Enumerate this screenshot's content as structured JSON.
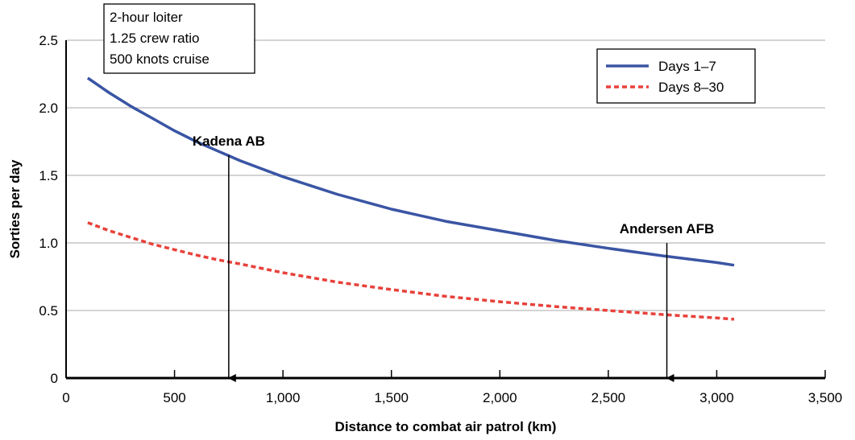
{
  "chart_data": {
    "type": "line",
    "xlabel": "Distance to combat air patrol (km)",
    "ylabel": "Sorties per day",
    "xlim": [
      0,
      3500
    ],
    "ylim": [
      0,
      2.5
    ],
    "x_ticks": [
      "0",
      "500",
      "1,000",
      "1,500",
      "2,000",
      "2,500",
      "3,000",
      "3,500"
    ],
    "y_ticks": [
      "0",
      "0.5",
      "1.0",
      "1.5",
      "2.0",
      "2.5"
    ],
    "grid": "horizontal",
    "legend_position": "top-right",
    "series": [
      {
        "name": "Days 1–7",
        "color": "#3a55a4",
        "style": "solid",
        "x": [
          100,
          200,
          300,
          400,
          500,
          600,
          700,
          750,
          800,
          900,
          1000,
          1250,
          1500,
          1750,
          2000,
          2250,
          2500,
          2750,
          3000,
          3080
        ],
        "y": [
          2.22,
          2.11,
          2.01,
          1.92,
          1.83,
          1.75,
          1.68,
          1.645,
          1.61,
          1.55,
          1.49,
          1.36,
          1.25,
          1.16,
          1.09,
          1.02,
          0.96,
          0.905,
          0.855,
          0.835
        ]
      },
      {
        "name": "Days 8–30",
        "color": "#e8413a",
        "style": "dashed",
        "x": [
          100,
          200,
          300,
          400,
          500,
          600,
          700,
          750,
          800,
          1000,
          1250,
          1500,
          1750,
          2000,
          2250,
          2500,
          2750,
          3000,
          3080
        ],
        "y": [
          1.15,
          1.09,
          1.04,
          0.99,
          0.95,
          0.91,
          0.875,
          0.86,
          0.845,
          0.78,
          0.71,
          0.655,
          0.605,
          0.565,
          0.53,
          0.5,
          0.47,
          0.445,
          0.435
        ]
      }
    ],
    "annotations": [
      {
        "label": "Kadena AB",
        "x": 750,
        "y_from": 1.65,
        "y_to": 0
      },
      {
        "label": "Andersen AFB",
        "x": 2770,
        "y_from": 1.0,
        "y_to": 0
      }
    ],
    "note_box": [
      "2-hour loiter",
      "1.25 crew ratio",
      "500 knots cruise"
    ]
  }
}
